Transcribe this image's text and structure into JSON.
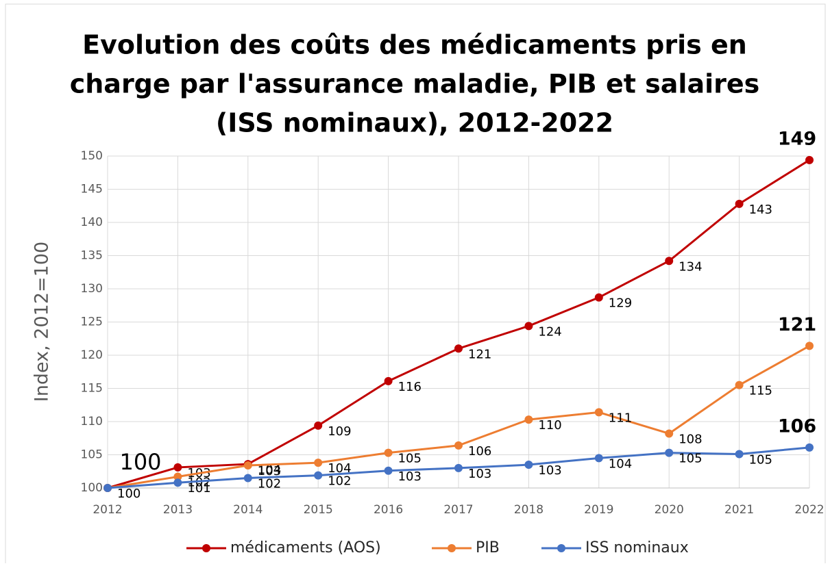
{
  "chart_data": {
    "type": "line",
    "title": [
      "Evolution des coûts des médicaments pris en",
      "charge par l'assurance maladie, PIB et salaires",
      "(ISS nominaux), 2012-2022"
    ],
    "ylabel": "Index,  2012=100",
    "categories": [
      "2012",
      "2013",
      "2014",
      "2015",
      "2016",
      "2017",
      "2018",
      "2019",
      "2020",
      "2021",
      "2022"
    ],
    "series": [
      {
        "name": "médicaments (AOS)",
        "color": "#c00000",
        "values": [
          100,
          103.1,
          103.6,
          109.4,
          116.1,
          121.0,
          124.4,
          128.7,
          134.2,
          142.8,
          149.4
        ],
        "value_labels": [
          "100",
          "103",
          "104",
          "109",
          "116",
          "121",
          "124",
          "129",
          "134",
          "143",
          "149"
        ]
      },
      {
        "name": "PIB",
        "color": "#ed7d31",
        "values": [
          100,
          101.7,
          103.4,
          103.8,
          105.3,
          106.4,
          110.3,
          111.4,
          108.2,
          115.5,
          121.4
        ],
        "value_labels": [
          null,
          "102",
          "103",
          "104",
          "105",
          "106",
          "110",
          "111",
          "108",
          "115",
          "121"
        ]
      },
      {
        "name": "ISS nominaux",
        "color": "#4472c4",
        "values": [
          100,
          100.8,
          101.5,
          101.9,
          102.6,
          103.0,
          103.5,
          104.5,
          105.3,
          105.1,
          106.1
        ],
        "value_labels": [
          "100",
          "101",
          "102",
          "102",
          "103",
          "103",
          "103",
          "104",
          "105",
          "105",
          "106"
        ]
      }
    ],
    "ylim": [
      100,
      150
    ],
    "yticks": [
      100,
      105,
      110,
      115,
      120,
      125,
      130,
      135,
      140,
      145,
      150
    ],
    "grid": true,
    "legend": "bottom"
  }
}
